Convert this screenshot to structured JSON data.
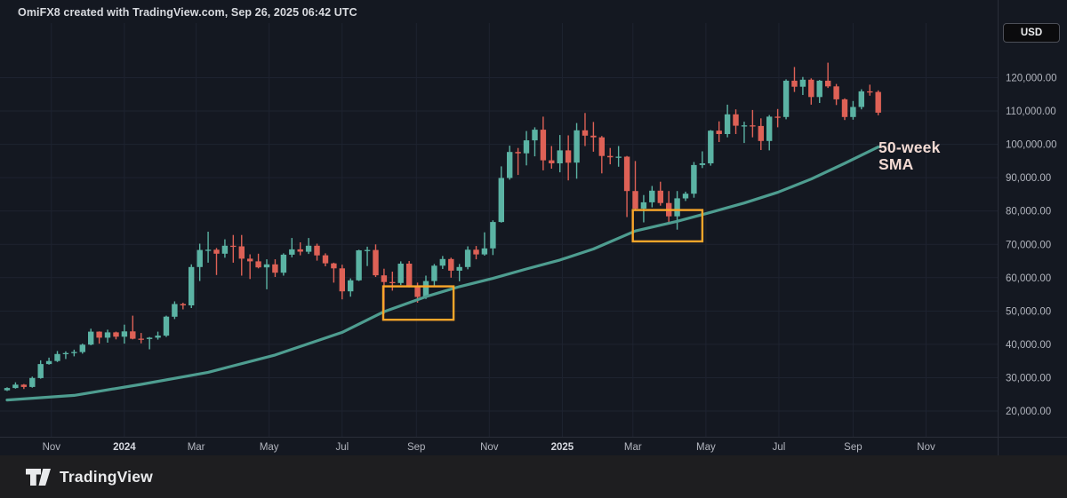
{
  "header": {
    "title": "OmiFX8 created with TradingView.com, Sep 26, 2025 06:42 UTC",
    "currency_button": "USD"
  },
  "footer": {
    "brand": "TradingView"
  },
  "chart_data": {
    "type": "candlestick",
    "quote_currency": "USD",
    "interval": "1W",
    "start_date": "2023-09-25",
    "title": "OmiFX8 created with TradingView.com, Sep 26, 2025 06:42 UTC",
    "annotation": {
      "lines": [
        "50-week",
        "SMA"
      ]
    },
    "y_axis": {
      "ticks": [
        20000,
        30000,
        40000,
        50000,
        60000,
        70000,
        80000,
        90000,
        100000,
        110000,
        120000
      ],
      "tick_format": "#,##0.00",
      "visible_range_usd": [
        12000,
        136000
      ]
    },
    "x_axis": {
      "labels": [
        {
          "label": "Nov",
          "date": "2023-11-01",
          "bold": false
        },
        {
          "label": "2024",
          "date": "2024-01-01",
          "bold": true
        },
        {
          "label": "Mar",
          "date": "2024-03-01",
          "bold": false
        },
        {
          "label": "May",
          "date": "2024-05-01",
          "bold": false
        },
        {
          "label": "Jul",
          "date": "2024-07-01",
          "bold": false
        },
        {
          "label": "Sep",
          "date": "2024-09-01",
          "bold": false
        },
        {
          "label": "Nov",
          "date": "2024-11-01",
          "bold": false
        },
        {
          "label": "2025",
          "date": "2025-01-01",
          "bold": true
        },
        {
          "label": "Mar",
          "date": "2025-03-01",
          "bold": false
        },
        {
          "label": "May",
          "date": "2025-05-01",
          "bold": false
        },
        {
          "label": "Jul",
          "date": "2025-07-01",
          "bold": false
        },
        {
          "label": "Sep",
          "date": "2025-09-01",
          "bold": false
        },
        {
          "label": "Nov",
          "date": "2025-11-01",
          "bold": false
        }
      ]
    },
    "ohlc_usd": [
      [
        26200,
        27100,
        26000,
        26900
      ],
      [
        26900,
        28600,
        26700,
        27900
      ],
      [
        27900,
        28100,
        26600,
        27200
      ],
      [
        27200,
        30300,
        27000,
        29900
      ],
      [
        29900,
        35200,
        29700,
        34100
      ],
      [
        34100,
        36000,
        33900,
        35000
      ],
      [
        35000,
        38000,
        34700,
        37100
      ],
      [
        37100,
        37900,
        35600,
        37400
      ],
      [
        37400,
        38400,
        36400,
        37700
      ],
      [
        37700,
        40200,
        37200,
        39900
      ],
      [
        39900,
        44700,
        39700,
        43800
      ],
      [
        43800,
        43900,
        40200,
        42000
      ],
      [
        42000,
        44400,
        40500,
        43600
      ],
      [
        43600,
        43800,
        41500,
        42300
      ],
      [
        42300,
        45900,
        40200,
        43900
      ],
      [
        43900,
        48600,
        41500,
        41700
      ],
      [
        41700,
        43400,
        40300,
        41600
      ],
      [
        41600,
        42200,
        38500,
        42000
      ],
      [
        42000,
        43800,
        41400,
        42600
      ],
      [
        42600,
        48600,
        42200,
        48300
      ],
      [
        48300,
        52900,
        47600,
        52100
      ],
      [
        52100,
        52500,
        50500,
        51700
      ],
      [
        51700,
        64000,
        50900,
        63200
      ],
      [
        63200,
        70200,
        59000,
        68300
      ],
      [
        68300,
        73800,
        64500,
        68400
      ],
      [
        68400,
        68900,
        60800,
        67200
      ],
      [
        67200,
        71500,
        66000,
        69600
      ],
      [
        69600,
        72800,
        64500,
        69400
      ],
      [
        69400,
        72800,
        60600,
        65700
      ],
      [
        65700,
        67000,
        59600,
        64900
      ],
      [
        64900,
        67200,
        62800,
        63100
      ],
      [
        63100,
        65500,
        56500,
        64000
      ],
      [
        64000,
        65500,
        60200,
        61500
      ],
      [
        61500,
        67300,
        60600,
        66900
      ],
      [
        66900,
        71900,
        66100,
        68500
      ],
      [
        68500,
        70600,
        66700,
        67800
      ],
      [
        67800,
        71900,
        67100,
        69600
      ],
      [
        69600,
        70200,
        65100,
        66700
      ],
      [
        66700,
        67300,
        63400,
        64300
      ],
      [
        64300,
        64500,
        58500,
        62800
      ],
      [
        62800,
        63900,
        53500,
        55900
      ],
      [
        55900,
        59800,
        54300,
        59200
      ],
      [
        59200,
        68400,
        59000,
        68200
      ],
      [
        68200,
        69300,
        63500,
        68300
      ],
      [
        68300,
        70000,
        60200,
        60700
      ],
      [
        60700,
        62700,
        49100,
        58700
      ],
      [
        58700,
        61800,
        56100,
        58400
      ],
      [
        58400,
        64900,
        57800,
        64200
      ],
      [
        64200,
        65000,
        57100,
        57300
      ],
      [
        57300,
        58500,
        52500,
        54200
      ],
      [
        54200,
        60600,
        53600,
        59000
      ],
      [
        59000,
        64100,
        57500,
        63600
      ],
      [
        63600,
        66500,
        62600,
        65600
      ],
      [
        65600,
        66000,
        60000,
        62100
      ],
      [
        62100,
        64100,
        58900,
        63200
      ],
      [
        63200,
        69400,
        62500,
        68400
      ],
      [
        68400,
        69500,
        65500,
        67000
      ],
      [
        67000,
        73600,
        66600,
        68800
      ],
      [
        68800,
        77200,
        66800,
        76700
      ],
      [
        76700,
        93400,
        76500,
        89900
      ],
      [
        89900,
        99600,
        89400,
        97700
      ],
      [
        97700,
        98900,
        90800,
        97300
      ],
      [
        97300,
        104000,
        93700,
        101200
      ],
      [
        101200,
        105100,
        96400,
        104400
      ],
      [
        104400,
        108300,
        92200,
        95200
      ],
      [
        95200,
        99500,
        92700,
        94300
      ],
      [
        94300,
        102800,
        91600,
        98200
      ],
      [
        98200,
        102700,
        89200,
        94500
      ],
      [
        94500,
        106400,
        89700,
        104200
      ],
      [
        104200,
        109400,
        99500,
        102600
      ],
      [
        102600,
        106700,
        97800,
        102100
      ],
      [
        102100,
        102500,
        91300,
        96500
      ],
      [
        96500,
        98900,
        94000,
        96100
      ],
      [
        96100,
        99500,
        93300,
        96300
      ],
      [
        96300,
        96500,
        78200,
        86000
      ],
      [
        86000,
        95000,
        80100,
        80700
      ],
      [
        80700,
        84800,
        76600,
        82600
      ],
      [
        82600,
        87500,
        81100,
        86100
      ],
      [
        86100,
        88800,
        81600,
        82400
      ],
      [
        82400,
        86000,
        76000,
        78400
      ],
      [
        78400,
        86000,
        74400,
        83800
      ],
      [
        83800,
        85800,
        83000,
        85200
      ],
      [
        85200,
        94700,
        84000,
        93800
      ],
      [
        93800,
        97900,
        92900,
        94300
      ],
      [
        94300,
        104300,
        93600,
        104100
      ],
      [
        104100,
        106900,
        100700,
        103100
      ],
      [
        103100,
        111900,
        102100,
        109000
      ],
      [
        109000,
        110500,
        103100,
        105600
      ],
      [
        105600,
        106800,
        100400,
        105700
      ],
      [
        105700,
        110300,
        102100,
        105500
      ],
      [
        105500,
        107800,
        98300,
        101000
      ],
      [
        101000,
        108800,
        98200,
        108300
      ],
      [
        108300,
        110600,
        105100,
        108200
      ],
      [
        108200,
        119500,
        107500,
        119100
      ],
      [
        119100,
        123200,
        115700,
        117300
      ],
      [
        117300,
        120200,
        114800,
        119400
      ],
      [
        119400,
        119800,
        111900,
        114200
      ],
      [
        114200,
        119300,
        112400,
        119100
      ],
      [
        119100,
        124500,
        116900,
        117400
      ],
      [
        117400,
        118100,
        111800,
        113500
      ],
      [
        113500,
        113800,
        107300,
        108200
      ],
      [
        108200,
        113000,
        107400,
        111200
      ],
      [
        111200,
        116500,
        110500,
        115900
      ],
      [
        115900,
        117900,
        114600,
        115700
      ],
      [
        115700,
        116200,
        108700,
        109500
      ]
    ],
    "overlays": {
      "sma_50w_points": [
        [
          0,
          23300
        ],
        [
          8,
          24700
        ],
        [
          16,
          28000
        ],
        [
          24,
          31600
        ],
        [
          32,
          36800
        ],
        [
          40,
          43600
        ],
        [
          45,
          49800
        ],
        [
          50,
          54300
        ],
        [
          54,
          57300
        ],
        [
          58,
          59800
        ],
        [
          62,
          62600
        ],
        [
          66,
          65300
        ],
        [
          70,
          68600
        ],
        [
          75,
          74000
        ],
        [
          80,
          76900
        ],
        [
          84,
          79600
        ],
        [
          88,
          82400
        ],
        [
          92,
          85600
        ],
        [
          96,
          89600
        ],
        [
          100,
          94300
        ],
        [
          104,
          99200
        ]
      ]
    },
    "highlight_boxes": [
      {
        "week_start": 44.9,
        "week_end": 53.3,
        "price_low": 47400,
        "price_high": 57400
      },
      {
        "week_start": 74.7,
        "week_end": 83.0,
        "price_low": 70900,
        "price_high": 80300
      }
    ],
    "colors": {
      "background": "#141821",
      "footer_background": "#1e1e20",
      "up": "#5bb3a4",
      "down": "#de6156",
      "sma": "#4e9d90",
      "box": "#f9a62a",
      "grid": "#1e2330",
      "axis_line": "#2a2e39",
      "axis_text": "#b2b5be",
      "axis_text_strong": "#d6d8df",
      "annotation_text": "#f2dad3",
      "title_text": "#d8dadf"
    }
  }
}
